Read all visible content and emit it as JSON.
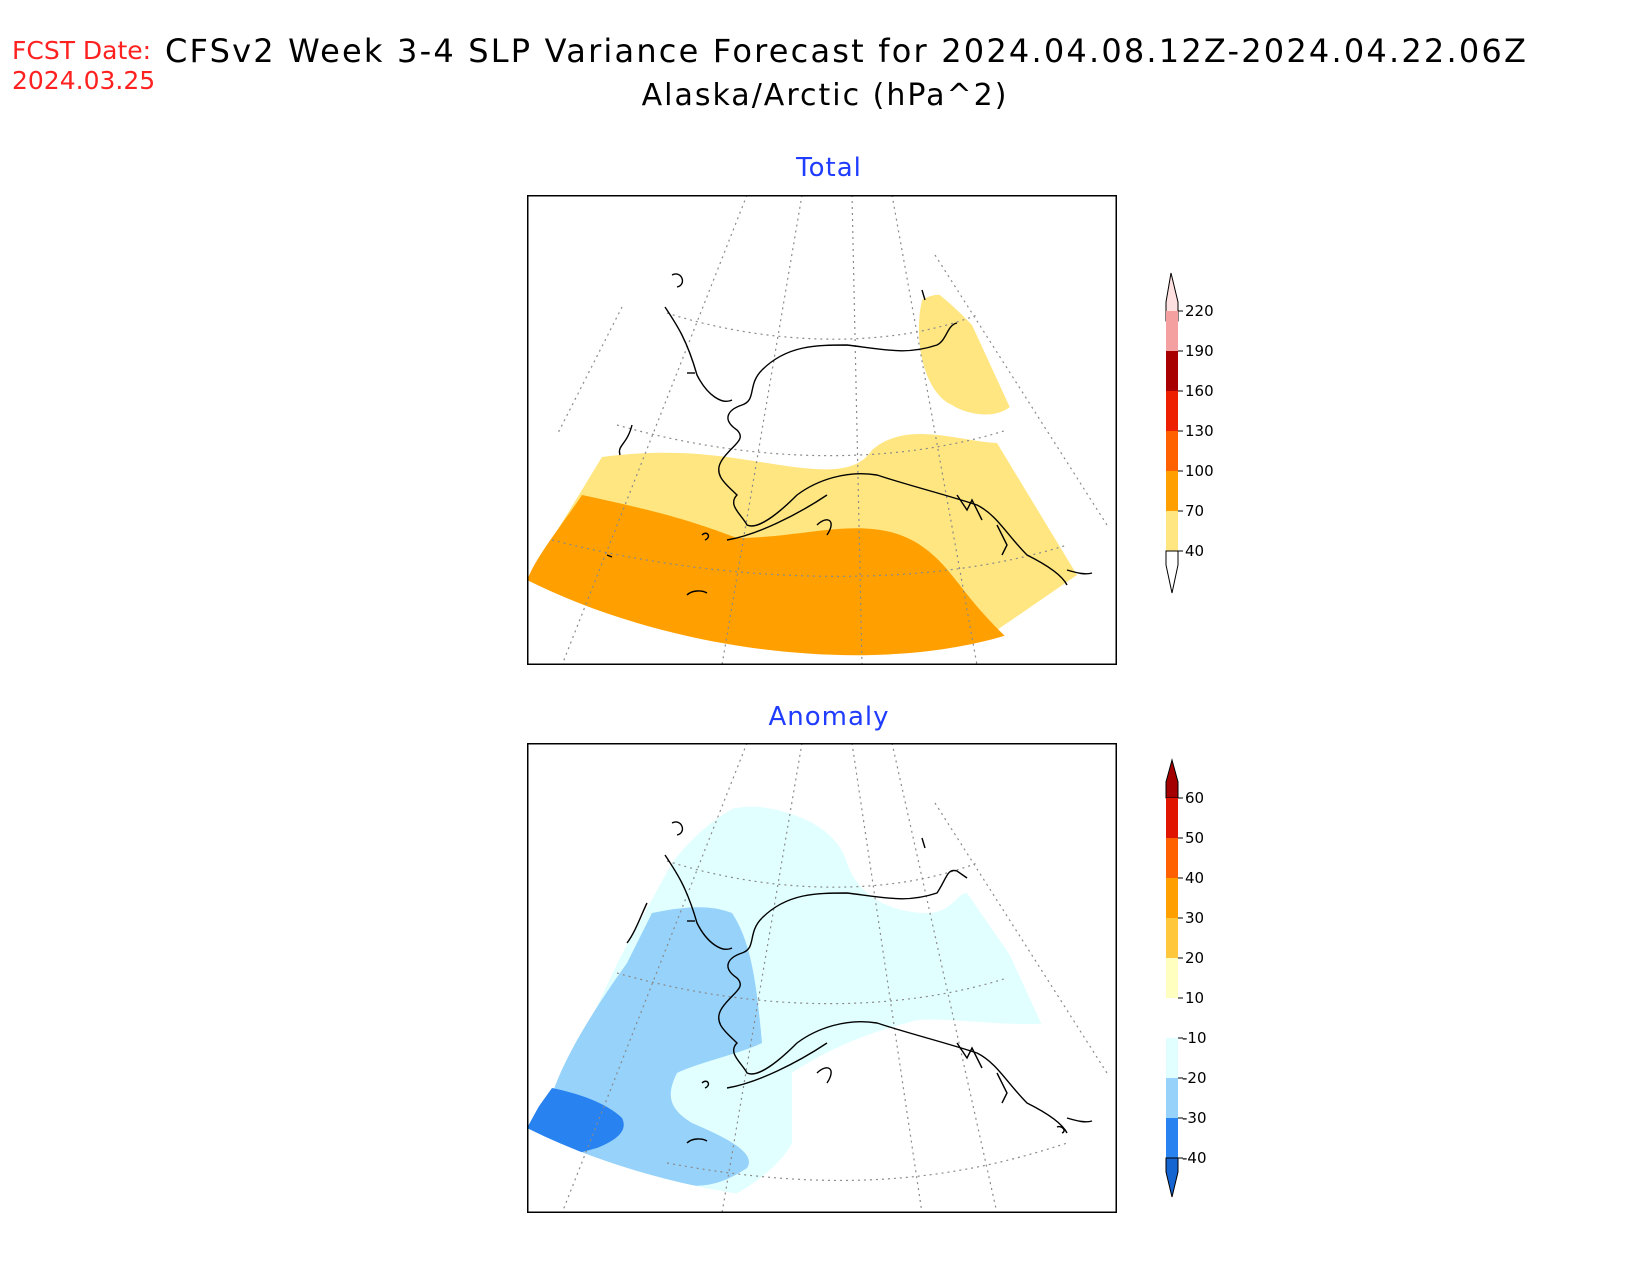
{
  "header": {
    "fcst_label": "FCST Date:",
    "fcst_date": "2024.03.25",
    "title": "CFSv2 Week 3-4 SLP Variance Forecast for 2024.04.08.12Z-2024.04.22.06Z",
    "subtitle": "Alaska/Arctic (hPa^2)"
  },
  "panels": {
    "total": {
      "title": "Total"
    },
    "anomaly": {
      "title": "Anomaly"
    }
  },
  "colorbars": {
    "total": {
      "labels": [
        "40",
        "70",
        "100",
        "130",
        "160",
        "190",
        "220"
      ],
      "colors": [
        "#ffe680",
        "#ffa000",
        "#ff6000",
        "#ee1f00",
        "#a80000",
        "#f4a0a0",
        "#ffe0e0"
      ]
    },
    "anomaly": {
      "labels": [
        "-40",
        "-30",
        "-20",
        "-10",
        "10",
        "20",
        "30",
        "40",
        "50",
        "60"
      ],
      "colors": [
        "#1464d2",
        "#2882f0",
        "#96d2fa",
        "#e1ffff",
        "#ffffff",
        "#ffffc0",
        "#ffc83c",
        "#ffa000",
        "#ff6000",
        "#e11400",
        "#a50000"
      ]
    }
  },
  "colors": {
    "fcst_date": "#ff2020",
    "panel_title": "#1f3cff",
    "total_40_70": "#ffe680",
    "total_70_100": "#ffa000",
    "anom_m10_m20": "#e1ffff",
    "anom_m20_m30": "#96d2fa",
    "anom_m30_m40": "#2882f0"
  }
}
